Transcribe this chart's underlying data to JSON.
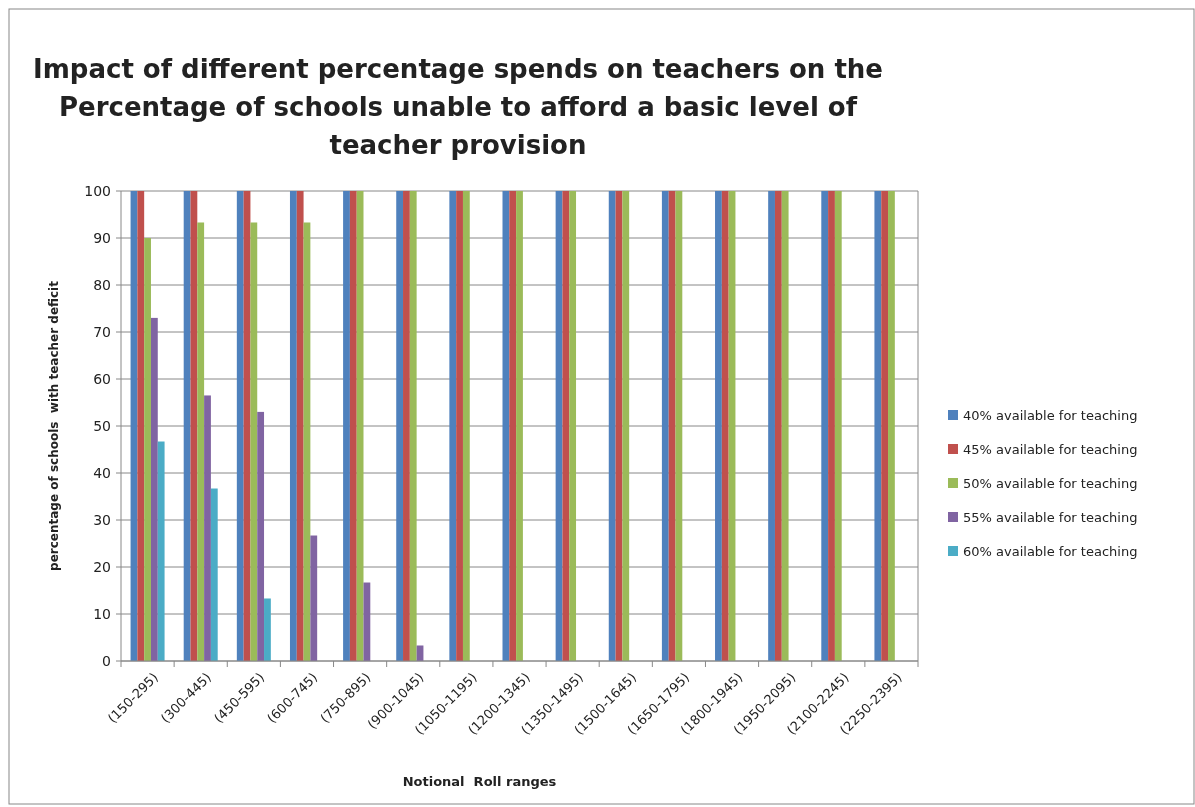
{
  "chart_data": {
    "type": "bar",
    "title": "Impact of different percentage spends on teachers on the Percentage of schools unable to afford a basic level of teacher provision",
    "xlabel": "Notional  Roll ranges",
    "ylabel": "percentage of schools  with teacher deficit",
    "categories": [
      "(150-295)",
      "(300-445)",
      "(450-595)",
      "(600-745)",
      "(750-895)",
      "(900-1045)",
      "(1050-1195)",
      "(1200-1345)",
      "(1350-1495)",
      "(1500-1645)",
      "(1650-1795)",
      "(1800-1945)",
      "(1950-2095)",
      "(2100-2245)",
      "(2250-2395)"
    ],
    "series": [
      {
        "name": "40% available for teaching",
        "color": "#4f81bd",
        "values": [
          100,
          100,
          100,
          100,
          100,
          100,
          100,
          100,
          100,
          100,
          100,
          100,
          100,
          100,
          100
        ]
      },
      {
        "name": "45% available for teaching",
        "color": "#c0504d",
        "values": [
          100,
          100,
          100,
          100,
          100,
          100,
          100,
          100,
          100,
          100,
          100,
          100,
          100,
          100,
          100
        ]
      },
      {
        "name": "50% available for teaching",
        "color": "#9bbb59",
        "values": [
          90,
          93.3,
          93.3,
          93.3,
          100,
          100,
          100,
          100,
          100,
          100,
          100,
          100,
          100,
          100,
          100
        ]
      },
      {
        "name": "55% available for teaching",
        "color": "#8064a2",
        "values": [
          73,
          56.5,
          53,
          26.7,
          16.7,
          3.3,
          0,
          0,
          0,
          0,
          0,
          0,
          0,
          0,
          0
        ]
      },
      {
        "name": "60% available for teaching",
        "color": "#4bacc6",
        "values": [
          46.7,
          36.7,
          13.3,
          0,
          0,
          0,
          0,
          0,
          0,
          0,
          0,
          0,
          0,
          0,
          0
        ]
      }
    ],
    "ylim": [
      0,
      100
    ],
    "yticks": [
      0,
      10,
      20,
      30,
      40,
      50,
      60,
      70,
      80,
      90,
      100
    ],
    "grid": "y",
    "legend": "right"
  }
}
